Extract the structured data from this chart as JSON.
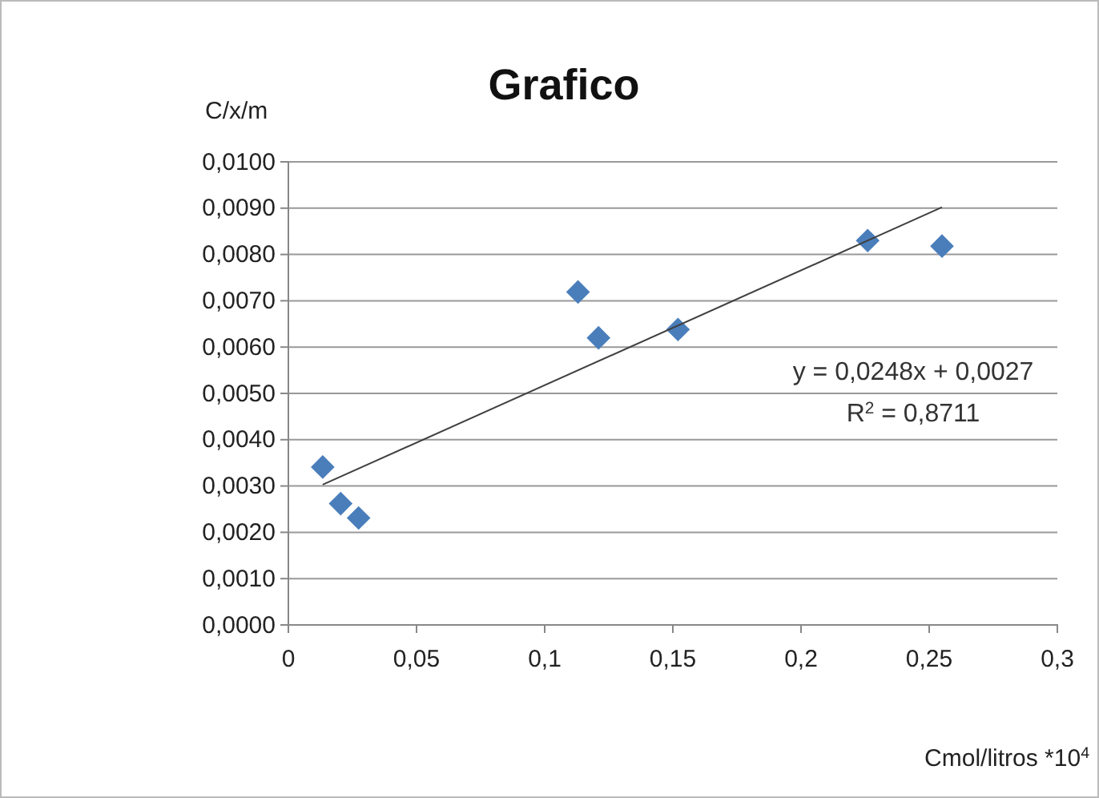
{
  "chart_data": {
    "type": "scatter",
    "title": "Grafico",
    "xlabel": "Cmol/litros *10$^{4}$",
    "ylabel": "C/x/m",
    "annotations": [
      "y = 0,0248x + 0,0027",
      "R$^{2}$ = 0,8711"
    ],
    "x": [
      0.0134,
      0.0204,
      0.0274,
      0.113,
      0.121,
      0.152,
      0.226,
      0.255
    ],
    "series": [
      {
        "color": "#4a7ebb",
        "marker": "diamond",
        "values": [
          0.00341,
          0.00262,
          0.00231,
          0.00719,
          0.0062,
          0.00638,
          0.0083,
          0.00818
        ]
      },
      {
        "type": "line",
        "color": "#404040",
        "marker": "none",
        "line_style": "solid",
        "x": [
          0.0134,
          0.255
        ],
        "values": [
          0.00303,
          0.00902
        ]
      }
    ],
    "xlim": [
      0,
      0.3
    ],
    "xticks": [
      0,
      {
        "value": 0.05,
        "label": "0,05"
      },
      {
        "value": 0.1,
        "label": "0,1"
      },
      {
        "value": 0.15,
        "label": "0,15"
      },
      {
        "value": 0.2,
        "label": "0,2"
      },
      {
        "value": 0.25,
        "label": "0,25"
      },
      {
        "value": 0.3,
        "label": "0,3"
      }
    ],
    "ylim": [
      0,
      0.01
    ],
    "yticks": [
      {
        "value": 0,
        "label": "0,0000"
      },
      {
        "value": 0.001,
        "label": "0,0010"
      },
      {
        "value": 0.002,
        "label": "0,0020"
      },
      {
        "value": 0.003,
        "label": "0,0030"
      },
      {
        "value": 0.004,
        "label": "0,0040"
      },
      {
        "value": 0.005,
        "label": "0,0050"
      },
      {
        "value": 0.006,
        "label": "0,0060"
      },
      {
        "value": 0.007,
        "label": "0,0070"
      },
      {
        "value": 0.008,
        "label": "0,0080"
      },
      {
        "value": 0.009,
        "label": "0,0090"
      },
      {
        "value": 0.01,
        "label": "0,0100"
      }
    ],
    "grid": "y"
  }
}
